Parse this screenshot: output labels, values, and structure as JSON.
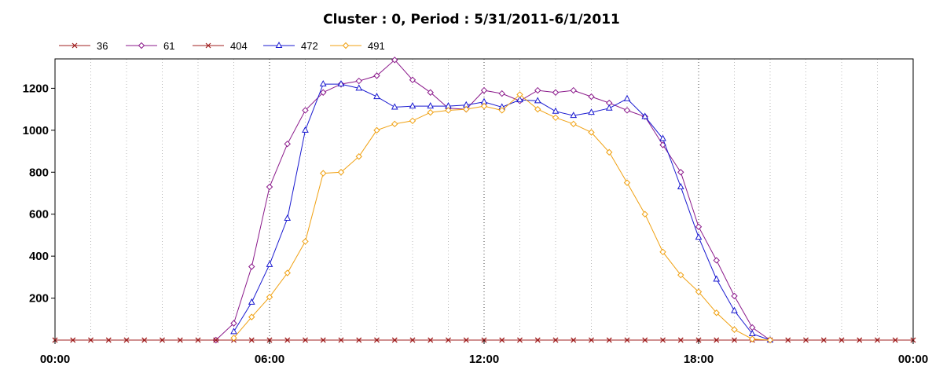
{
  "chart_data": {
    "type": "line",
    "title": "Cluster : 0, Period : 5/31/2011-6/1/2011",
    "xlabel": "",
    "ylabel": "",
    "x_tick_labels": [
      "00:00",
      "06:00",
      "12:00",
      "18:00",
      "00:00"
    ],
    "y_ticks": [
      200,
      400,
      600,
      800,
      1000,
      1200
    ],
    "xlim_hours": [
      0,
      24
    ],
    "ylim": [
      0,
      1340
    ],
    "grid": "vertical dotted",
    "legend_position": "top-left",
    "x_hours": [
      0,
      0.5,
      1,
      1.5,
      2,
      2.5,
      3,
      3.5,
      4,
      4.5,
      5,
      5.5,
      6,
      6.5,
      7,
      7.5,
      8,
      8.5,
      9,
      9.5,
      10,
      10.5,
      11,
      11.5,
      12,
      12.5,
      13,
      13.5,
      14,
      14.5,
      15,
      15.5,
      16,
      16.5,
      17,
      17.5,
      18,
      18.5,
      19,
      19.5,
      20,
      20.5,
      21,
      21.5,
      22,
      22.5,
      23,
      23.5,
      24
    ],
    "series": [
      {
        "name": "36",
        "color": "#a02020",
        "marker": "x",
        "values": [
          0,
          0,
          0,
          0,
          0,
          0,
          0,
          0,
          0,
          0,
          0,
          0,
          0,
          0,
          0,
          0,
          0,
          0,
          0,
          0,
          0,
          0,
          0,
          0,
          0,
          0,
          0,
          0,
          0,
          0,
          0,
          0,
          0,
          0,
          0,
          0,
          0,
          0,
          0,
          0,
          0,
          0,
          0,
          0,
          0,
          0,
          0,
          0,
          0
        ]
      },
      {
        "name": "61",
        "color": "#8b1a8b",
        "marker": "diamond",
        "values": [
          null,
          null,
          null,
          null,
          null,
          null,
          null,
          null,
          null,
          0,
          80,
          350,
          730,
          935,
          1095,
          1180,
          1220,
          1235,
          1260,
          1335,
          1240,
          1180,
          1105,
          1100,
          1190,
          1175,
          1140,
          1190,
          1180,
          1190,
          1160,
          1130,
          1095,
          1065,
          930,
          800,
          540,
          380,
          210,
          60,
          0,
          null,
          null,
          null,
          null,
          null,
          null,
          null,
          null
        ]
      },
      {
        "name": "404",
        "color": "#a02020",
        "marker": "x",
        "values": [
          0,
          0,
          0,
          0,
          0,
          0,
          0,
          0,
          0,
          0,
          0,
          0,
          0,
          0,
          0,
          0,
          0,
          0,
          0,
          0,
          0,
          0,
          0,
          0,
          0,
          0,
          0,
          0,
          0,
          0,
          0,
          0,
          0,
          0,
          0,
          0,
          0,
          0,
          0,
          0,
          0,
          0,
          0,
          0,
          0,
          0,
          0,
          0,
          0
        ]
      },
      {
        "name": "472",
        "color": "#1a1ad0",
        "marker": "triangle",
        "values": [
          null,
          null,
          null,
          null,
          null,
          null,
          null,
          null,
          null,
          null,
          40,
          180,
          360,
          580,
          1000,
          1220,
          1220,
          1200,
          1160,
          1110,
          1115,
          1115,
          1115,
          1120,
          1135,
          1110,
          1145,
          1140,
          1090,
          1070,
          1085,
          1105,
          1150,
          1065,
          960,
          730,
          490,
          290,
          140,
          30,
          0,
          null,
          null,
          null,
          null,
          null,
          null,
          null,
          null
        ]
      },
      {
        "name": "491",
        "color": "#f0a010",
        "marker": "diamond",
        "values": [
          null,
          null,
          null,
          null,
          null,
          null,
          null,
          null,
          null,
          null,
          10,
          110,
          205,
          320,
          470,
          795,
          800,
          875,
          1000,
          1030,
          1045,
          1085,
          1095,
          1100,
          1115,
          1095,
          1170,
          1100,
          1060,
          1030,
          990,
          895,
          750,
          600,
          420,
          310,
          230,
          130,
          50,
          5,
          0,
          null,
          null,
          null,
          null,
          null,
          null,
          null,
          null
        ]
      }
    ]
  }
}
